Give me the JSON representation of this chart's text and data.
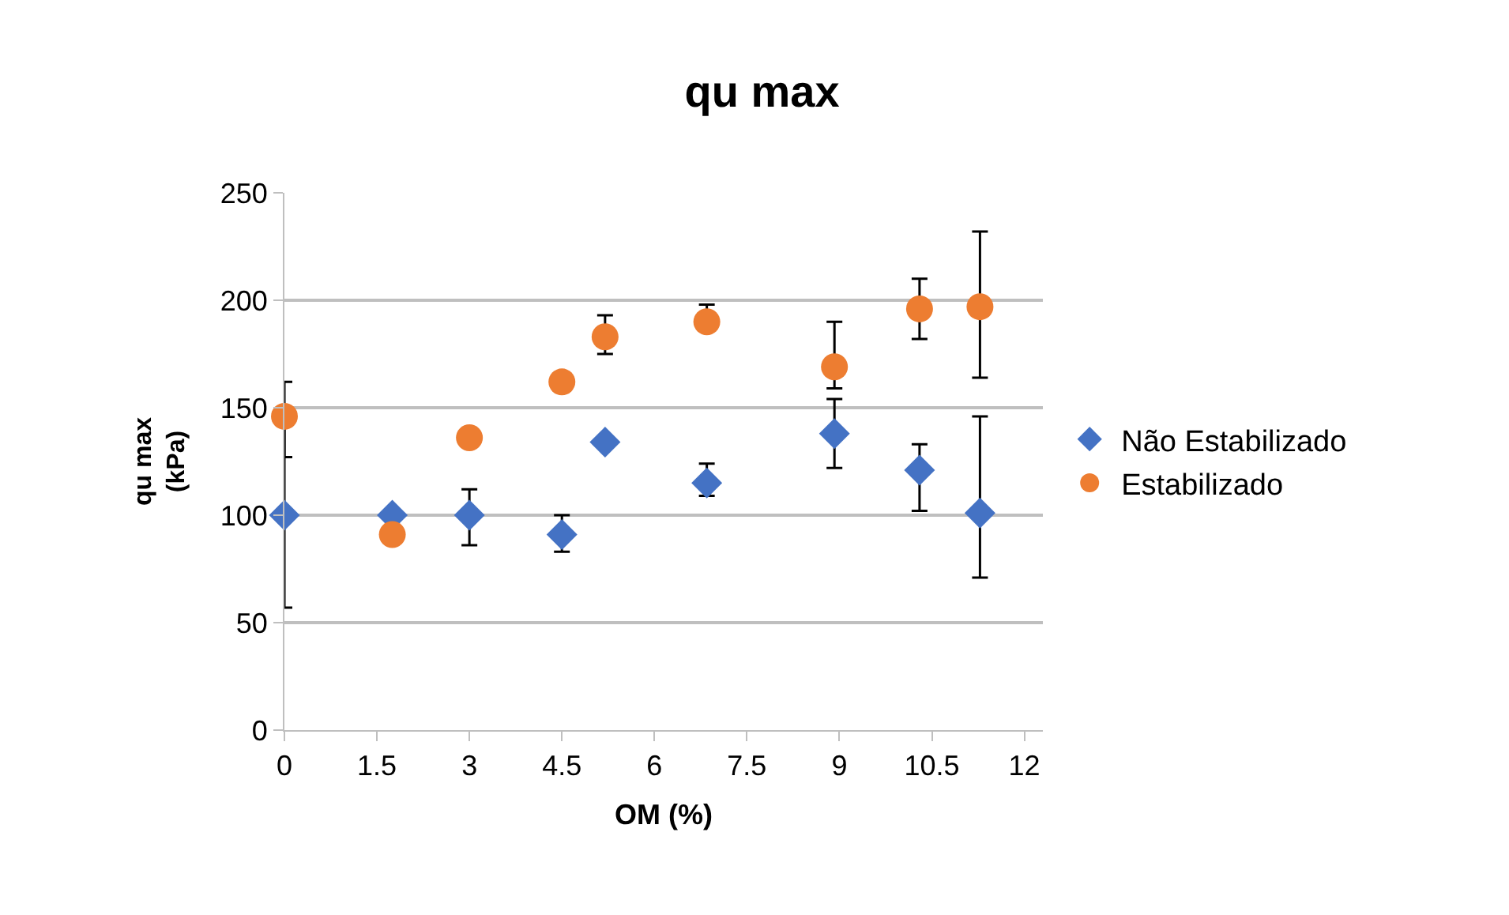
{
  "chart_data": {
    "type": "scatter",
    "title": "qu max",
    "xlabel": "OM (%)",
    "ylabel": "qu max\n(kPa)",
    "xlim": [
      0,
      12.3
    ],
    "xticks": [
      0,
      1.5,
      3,
      4.5,
      6,
      7.5,
      9,
      10.5,
      12
    ],
    "ylim": [
      0,
      250
    ],
    "yticks": [
      0,
      50,
      100,
      150,
      200,
      250
    ],
    "grid": "y",
    "legend": "right",
    "series": [
      {
        "name": "Não Estabilizado",
        "color": "#4472c4",
        "marker": "diamond",
        "x": [
          0,
          1.75,
          3,
          4.5,
          5.2,
          6.85,
          8.92,
          10.3,
          11.28
        ],
        "values": [
          100,
          100,
          100,
          91,
          134,
          115,
          138,
          121,
          101
        ],
        "errors": [
          [
            57,
            143
          ],
          null,
          [
            86,
            112
          ],
          [
            83,
            100
          ],
          null,
          [
            109,
            124
          ],
          [
            122,
            154
          ],
          [
            102,
            133
          ],
          [
            71,
            146
          ]
        ]
      },
      {
        "name": "Estabilizado",
        "color": "#ed7d31",
        "marker": "circle",
        "x": [
          0,
          1.75,
          3,
          4.5,
          5.2,
          6.85,
          8.92,
          10.3,
          11.28
        ],
        "values": [
          146,
          91,
          136,
          162,
          183,
          190,
          169,
          196,
          197
        ],
        "errors": [
          [
            127,
            162
          ],
          null,
          null,
          null,
          [
            175,
            193
          ],
          [
            190,
            198
          ],
          [
            159,
            190
          ],
          [
            182,
            210
          ],
          [
            164,
            232
          ]
        ]
      }
    ]
  }
}
